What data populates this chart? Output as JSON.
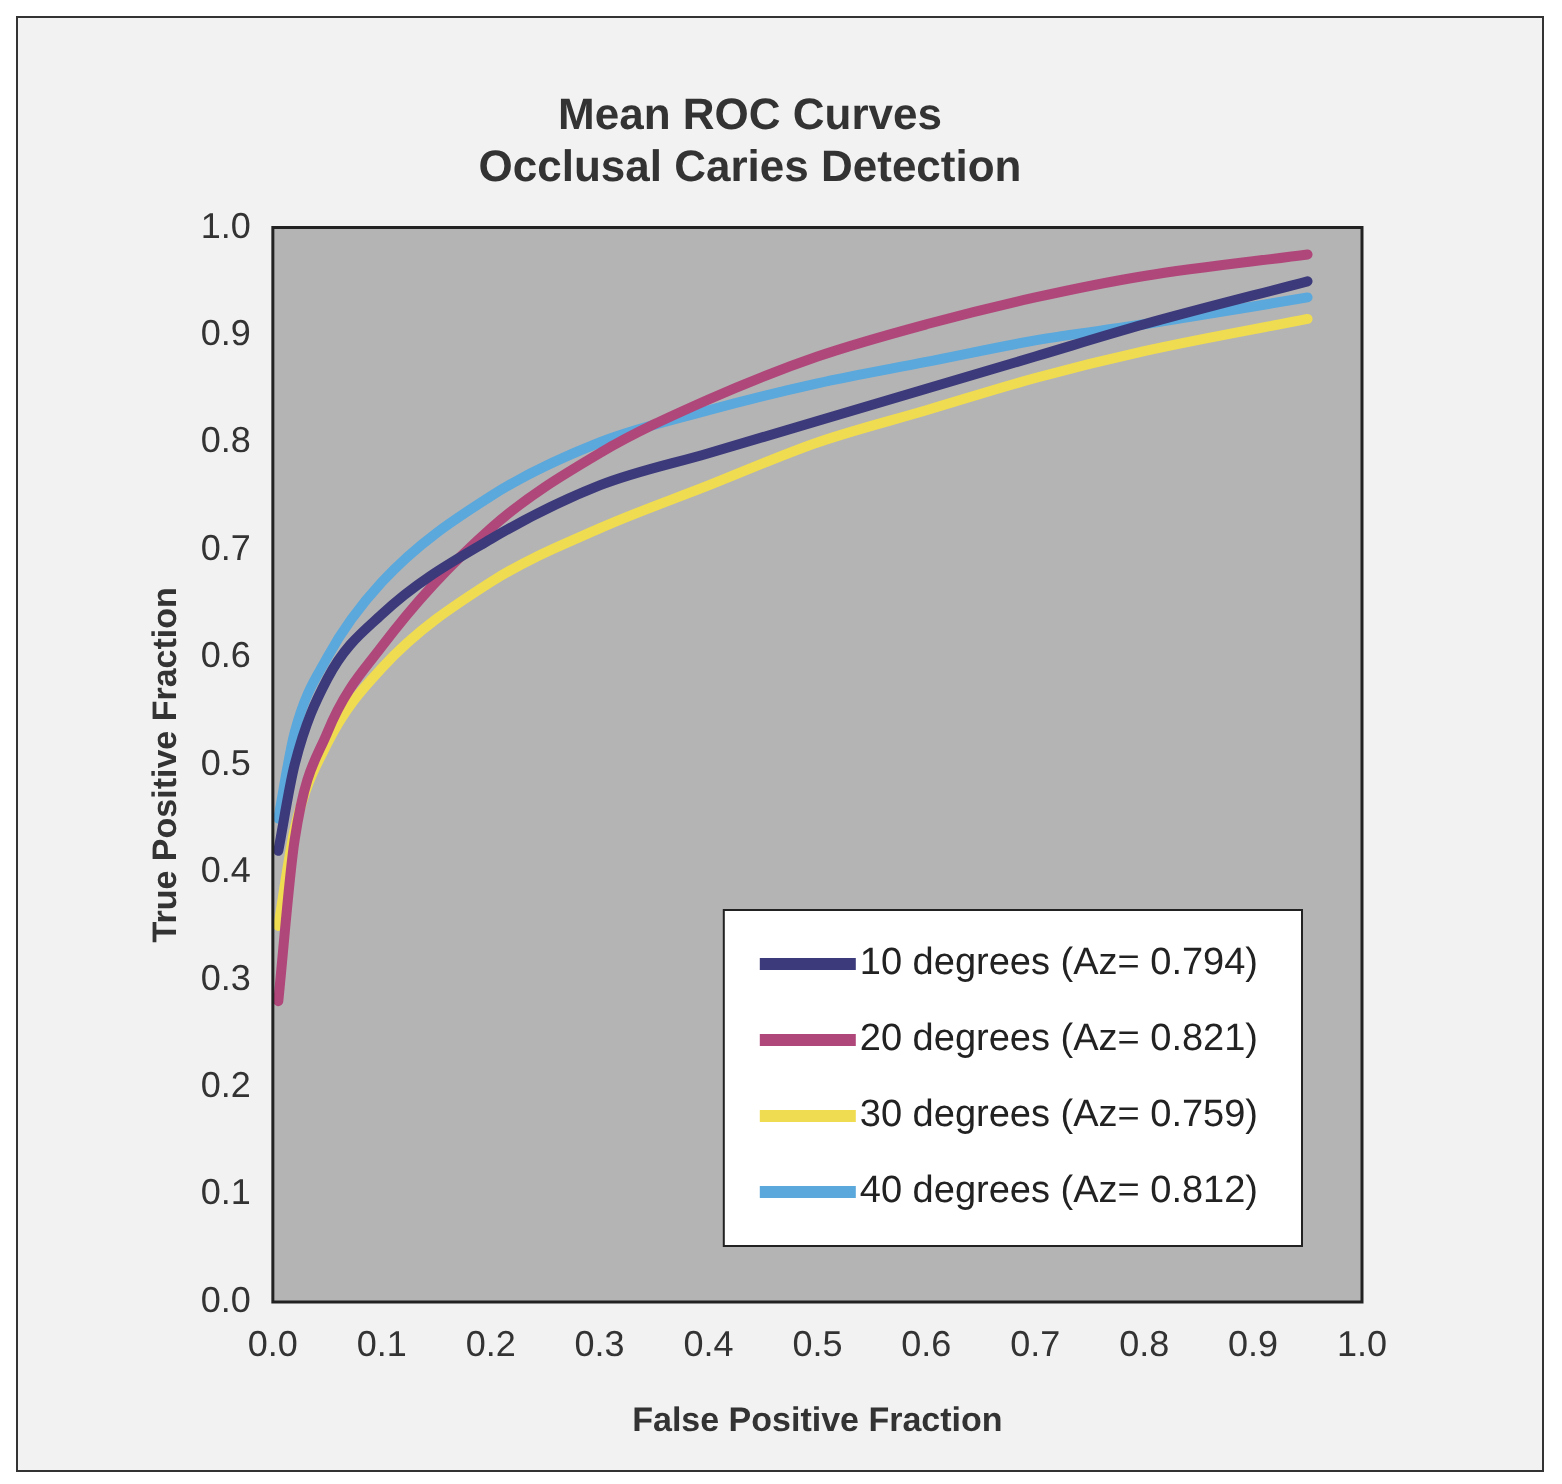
{
  "chart_data": {
    "type": "line",
    "title": [
      "Mean ROC Curves",
      "Occlusal Caries Detection"
    ],
    "xlabel": "False Positive Fraction",
    "ylabel": "True Positive Fraction",
    "xlim": [
      0,
      1
    ],
    "ylim": [
      0,
      1
    ],
    "xticks": [
      {
        "value": 0,
        "label": "0.0"
      },
      {
        "value": 0.1,
        "label": "0.1"
      },
      {
        "value": 0.2,
        "label": "0.2"
      },
      {
        "value": 0.3,
        "label": "0.3"
      },
      {
        "value": 0.4,
        "label": "0.4"
      },
      {
        "value": 0.5,
        "label": "0.5"
      },
      {
        "value": 0.6,
        "label": "0.6"
      },
      {
        "value": 0.7,
        "label": "0.7"
      },
      {
        "value": 0.8,
        "label": "0.8"
      },
      {
        "value": 0.9,
        "label": "0.9"
      },
      {
        "value": 1,
        "label": "1.0"
      }
    ],
    "yticks": [
      {
        "value": 0,
        "label": "0.0"
      },
      {
        "value": 0.1,
        "label": "0.1"
      },
      {
        "value": 0.2,
        "label": "0.2"
      },
      {
        "value": 0.3,
        "label": "0.3"
      },
      {
        "value": 0.4,
        "label": "0.4"
      },
      {
        "value": 0.5,
        "label": "0.5"
      },
      {
        "value": 0.6,
        "label": "0.6"
      },
      {
        "value": 0.7,
        "label": "0.7"
      },
      {
        "value": 0.8,
        "label": "0.8"
      },
      {
        "value": 0.9,
        "label": "0.9"
      },
      {
        "value": 1,
        "label": "1.0"
      }
    ],
    "x": [
      0.005,
      0.02,
      0.05,
      0.1,
      0.2,
      0.3,
      0.4,
      0.5,
      0.6,
      0.7,
      0.8,
      0.95
    ],
    "grid": false,
    "legend": "bottom right",
    "marker": "none",
    "line_style": "solid",
    "series": [
      {
        "name": "10 degrees (Az= 0.794)",
        "color": "#3c3a7a",
        "values": [
          0.42,
          0.5,
          0.58,
          0.64,
          0.71,
          0.76,
          0.79,
          0.82,
          0.85,
          0.88,
          0.91,
          0.95
        ]
      },
      {
        "name": "20 degrees (Az= 0.821)",
        "color": "#b0477a",
        "values": [
          0.28,
          0.43,
          0.53,
          0.61,
          0.72,
          0.79,
          0.84,
          0.88,
          0.91,
          0.935,
          0.955,
          0.975
        ]
      },
      {
        "name": "30 degrees (Az= 0.759)",
        "color": "#f0dc50",
        "values": [
          0.35,
          0.44,
          0.52,
          0.59,
          0.67,
          0.72,
          0.76,
          0.8,
          0.83,
          0.86,
          0.885,
          0.915
        ]
      },
      {
        "name": "40 degrees (Az= 0.812)",
        "color": "#5aa8dc",
        "values": [
          0.45,
          0.53,
          0.6,
          0.67,
          0.75,
          0.8,
          0.83,
          0.855,
          0.875,
          0.895,
          0.91,
          0.935
        ]
      }
    ]
  }
}
